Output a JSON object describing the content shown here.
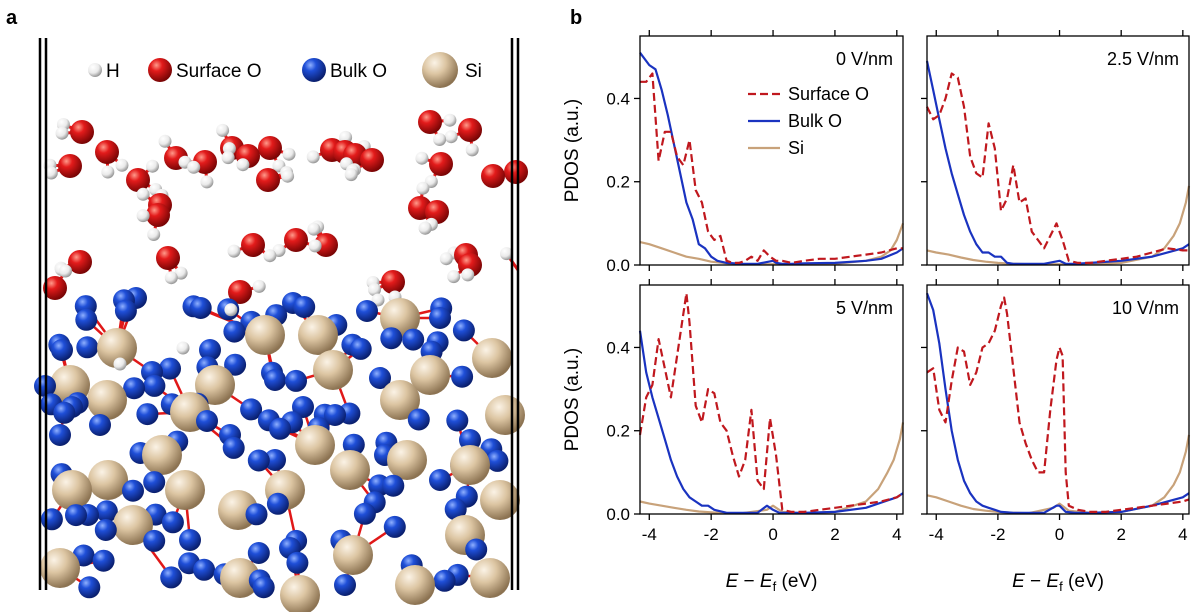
{
  "panel_a": {
    "letter": "a",
    "legend": [
      {
        "label": "H",
        "color": "#f2f2f2"
      },
      {
        "label": "Surface O",
        "color": "#d41818"
      },
      {
        "label": "Bulk O",
        "color": "#1f4fd8"
      },
      {
        "label": "Si",
        "color": "#d9c3a0"
      }
    ]
  },
  "panel_b": {
    "letter": "b"
  },
  "colors": {
    "surface_o": "#c0181e",
    "bulk_o": "#1a33c0",
    "si": "#c8a27a",
    "bond": "#e01818",
    "h_atom": "#f2f2f2",
    "o_atom": "#d41818",
    "bulk_atom": "#1f4fd8",
    "si_atom": "#d9c3a0"
  },
  "chart_data": [
    {
      "type": "line",
      "panel": "0 V/nm",
      "field_label": "0 V/nm",
      "xlabel": "E − E_f (eV)",
      "ylabel": "PDOS (a.u.)",
      "xlim": [
        -4.3,
        4.2
      ],
      "ylim": [
        0,
        0.55
      ],
      "xticks": [
        "-4",
        "-2",
        "0",
        "2",
        "4"
      ],
      "yticks": [
        "0.0",
        "0.2",
        "0.4"
      ],
      "legend": [
        "Surface O",
        "Bulk O",
        "Si"
      ],
      "legend_position": "top-right",
      "series": [
        {
          "name": "Surface O",
          "style": "dashed",
          "x": [
            -4.3,
            -4.1,
            -3.9,
            -3.7,
            -3.5,
            -3.3,
            -3.1,
            -2.9,
            -2.7,
            -2.5,
            -2.3,
            -2.1,
            -1.9,
            -1.7,
            -1.5,
            -1.3,
            -1.1,
            -0.9,
            -0.7,
            -0.5,
            -0.3,
            -0.1,
            0.1,
            0.3,
            0.6,
            1.0,
            1.5,
            2.0,
            2.5,
            3.0,
            3.5,
            4.0,
            4.2
          ],
          "y": [
            0.44,
            0.44,
            0.46,
            0.25,
            0.32,
            0.32,
            0.26,
            0.24,
            0.3,
            0.18,
            0.15,
            0.08,
            0.06,
            0.07,
            0.01,
            0.005,
            0.005,
            0.01,
            0.02,
            0.01,
            0.035,
            0.02,
            0.01,
            0.01,
            0.005,
            0.01,
            0.015,
            0.015,
            0.02,
            0.025,
            0.03,
            0.04,
            0.04
          ]
        },
        {
          "name": "Bulk O",
          "style": "solid",
          "x": [
            -4.3,
            -4.0,
            -3.8,
            -3.6,
            -3.4,
            -3.2,
            -3.0,
            -2.8,
            -2.6,
            -2.4,
            -2.2,
            -2.0,
            -1.8,
            -1.5,
            -1.0,
            -0.5,
            0.0,
            0.1,
            0.3,
            0.6,
            1.0,
            2.0,
            3.0,
            3.5,
            4.0,
            4.2
          ],
          "y": [
            0.51,
            0.48,
            0.47,
            0.42,
            0.36,
            0.29,
            0.22,
            0.15,
            0.11,
            0.05,
            0.04,
            0.02,
            0.01,
            0.005,
            0.003,
            0.003,
            0.01,
            0.005,
            0.003,
            0.003,
            0.004,
            0.005,
            0.01,
            0.015,
            0.03,
            0.04
          ]
        },
        {
          "name": "Si",
          "style": "solid",
          "x": [
            -4.3,
            -4.0,
            -3.6,
            -3.2,
            -2.8,
            -2.4,
            -2.0,
            -1.5,
            -1.0,
            0.0,
            1.0,
            2.0,
            3.0,
            3.5,
            3.8,
            4.0,
            4.1,
            4.2
          ],
          "y": [
            0.055,
            0.05,
            0.04,
            0.03,
            0.02,
            0.015,
            0.008,
            0.004,
            0.002,
            0.002,
            0.002,
            0.003,
            0.01,
            0.02,
            0.035,
            0.06,
            0.08,
            0.1
          ]
        }
      ]
    },
    {
      "type": "line",
      "panel": "2.5 V/nm",
      "field_label": "2.5 V/nm",
      "xlabel": "E − E_f (eV)",
      "ylabel": "",
      "xlim": [
        -4.3,
        4.2
      ],
      "ylim": [
        0,
        0.55
      ],
      "xticks": [
        "-4",
        "-2",
        "0",
        "2",
        "4"
      ],
      "yticks": [],
      "series": [
        {
          "name": "Surface O",
          "style": "dashed",
          "x": [
            -4.3,
            -4.1,
            -3.9,
            -3.7,
            -3.5,
            -3.3,
            -3.1,
            -2.9,
            -2.7,
            -2.5,
            -2.3,
            -2.1,
            -1.9,
            -1.7,
            -1.5,
            -1.3,
            -1.1,
            -0.9,
            -0.7,
            -0.5,
            -0.3,
            -0.1,
            0.1,
            0.3,
            0.6,
            1.0,
            1.5,
            2.0,
            2.5,
            3.0,
            3.5,
            4.0,
            4.2
          ],
          "y": [
            0.38,
            0.35,
            0.36,
            0.4,
            0.46,
            0.45,
            0.38,
            0.26,
            0.22,
            0.21,
            0.34,
            0.28,
            0.13,
            0.16,
            0.24,
            0.15,
            0.16,
            0.08,
            0.06,
            0.04,
            0.07,
            0.1,
            0.06,
            0.01,
            0.005,
            0.005,
            0.01,
            0.015,
            0.02,
            0.03,
            0.04,
            0.035,
            0.035
          ]
        },
        {
          "name": "Bulk O",
          "style": "solid",
          "x": [
            -4.3,
            -4.1,
            -3.9,
            -3.7,
            -3.5,
            -3.3,
            -3.1,
            -2.9,
            -2.7,
            -2.5,
            -2.3,
            -2.1,
            -1.9,
            -1.7,
            -1.5,
            -1.0,
            -0.5,
            0.0,
            0.2,
            0.5,
            1.0,
            2.0,
            3.0,
            4.0,
            4.2
          ],
          "y": [
            0.49,
            0.42,
            0.35,
            0.28,
            0.22,
            0.17,
            0.12,
            0.08,
            0.05,
            0.03,
            0.03,
            0.02,
            0.02,
            0.005,
            0.003,
            0.003,
            0.003,
            0.01,
            0.003,
            0.003,
            0.005,
            0.01,
            0.02,
            0.04,
            0.05
          ]
        },
        {
          "name": "Si",
          "style": "solid",
          "x": [
            -4.3,
            -4.0,
            -3.6,
            -3.2,
            -2.8,
            -2.4,
            -2.0,
            -1.5,
            -1.0,
            0.0,
            1.0,
            2.0,
            3.0,
            3.4,
            3.7,
            3.9,
            4.1,
            4.2
          ],
          "y": [
            0.035,
            0.03,
            0.025,
            0.018,
            0.012,
            0.008,
            0.005,
            0.003,
            0.002,
            0.002,
            0.002,
            0.005,
            0.02,
            0.04,
            0.07,
            0.1,
            0.15,
            0.19
          ]
        }
      ]
    },
    {
      "type": "line",
      "panel": "5 V/nm",
      "field_label": "5 V/nm",
      "xlabel": "E − E_f (eV)",
      "ylabel": "PDOS (a.u.)",
      "xlim": [
        -4.3,
        4.2
      ],
      "ylim": [
        0,
        0.55
      ],
      "xticks": [
        "-4",
        "-2",
        "0",
        "2",
        "4"
      ],
      "yticks": [
        "0.0",
        "0.2",
        "0.4"
      ],
      "series": [
        {
          "name": "Surface O",
          "style": "dashed",
          "x": [
            -4.3,
            -4.1,
            -3.9,
            -3.7,
            -3.5,
            -3.3,
            -3.1,
            -2.9,
            -2.8,
            -2.7,
            -2.5,
            -2.3,
            -2.1,
            -1.9,
            -1.7,
            -1.5,
            -1.3,
            -1.1,
            -0.9,
            -0.7,
            -0.5,
            -0.3,
            -0.1,
            0.1,
            0.3,
            0.6,
            1.0,
            1.5,
            2.0,
            2.5,
            3.0,
            3.5,
            4.0,
            4.2
          ],
          "y": [
            0.19,
            0.28,
            0.31,
            0.42,
            0.35,
            0.28,
            0.38,
            0.48,
            0.53,
            0.46,
            0.26,
            0.22,
            0.3,
            0.29,
            0.22,
            0.2,
            0.14,
            0.09,
            0.13,
            0.25,
            0.08,
            0.06,
            0.23,
            0.14,
            0.01,
            0.005,
            0.005,
            0.01,
            0.015,
            0.02,
            0.025,
            0.03,
            0.04,
            0.05
          ]
        },
        {
          "name": "Bulk O",
          "style": "solid",
          "x": [
            -4.3,
            -4.1,
            -3.9,
            -3.7,
            -3.5,
            -3.3,
            -3.1,
            -2.9,
            -2.7,
            -2.5,
            -2.3,
            -2.1,
            -1.9,
            -1.5,
            -1.0,
            -0.5,
            -0.2,
            0.0,
            0.2,
            0.5,
            1.0,
            2.0,
            3.0,
            4.0,
            4.2
          ],
          "y": [
            0.44,
            0.34,
            0.28,
            0.23,
            0.18,
            0.13,
            0.09,
            0.06,
            0.04,
            0.03,
            0.02,
            0.02,
            0.01,
            0.003,
            0.003,
            0.003,
            0.02,
            0.01,
            0.003,
            0.003,
            0.003,
            0.005,
            0.015,
            0.04,
            0.05
          ]
        },
        {
          "name": "Si",
          "style": "solid",
          "x": [
            -4.3,
            -4.0,
            -3.6,
            -3.2,
            -2.8,
            -2.4,
            -2.0,
            -1.5,
            -1.0,
            -0.2,
            0.0,
            0.3,
            1.0,
            2.0,
            3.0,
            3.4,
            3.7,
            3.9,
            4.1,
            4.2
          ],
          "y": [
            0.03,
            0.025,
            0.02,
            0.015,
            0.01,
            0.006,
            0.004,
            0.002,
            0.002,
            0.01,
            0.02,
            0.005,
            0.002,
            0.005,
            0.03,
            0.06,
            0.1,
            0.13,
            0.18,
            0.22
          ]
        }
      ]
    },
    {
      "type": "line",
      "panel": "10 V/nm",
      "field_label": "10 V/nm",
      "xlabel": "E − E_f (eV)",
      "ylabel": "",
      "xlim": [
        -4.3,
        4.2
      ],
      "ylim": [
        0,
        0.55
      ],
      "xticks": [
        "-4",
        "-2",
        "0",
        "2",
        "4"
      ],
      "yticks": [],
      "series": [
        {
          "name": "Surface O",
          "style": "dashed",
          "x": [
            -4.3,
            -4.1,
            -3.9,
            -3.7,
            -3.5,
            -3.3,
            -3.1,
            -2.9,
            -2.7,
            -2.5,
            -2.3,
            -2.1,
            -1.9,
            -1.8,
            -1.7,
            -1.5,
            -1.3,
            -1.1,
            -0.9,
            -0.7,
            -0.5,
            -0.3,
            -0.1,
            0.0,
            0.1,
            0.2,
            0.3,
            0.6,
            1.0,
            1.5,
            2.0,
            2.5,
            3.0,
            3.5,
            4.0,
            4.2
          ],
          "y": [
            0.34,
            0.35,
            0.25,
            0.22,
            0.32,
            0.4,
            0.39,
            0.31,
            0.34,
            0.4,
            0.41,
            0.44,
            0.5,
            0.52,
            0.48,
            0.35,
            0.22,
            0.17,
            0.13,
            0.1,
            0.1,
            0.25,
            0.37,
            0.4,
            0.38,
            0.1,
            0.02,
            0.01,
            0.005,
            0.005,
            0.01,
            0.015,
            0.02,
            0.025,
            0.03,
            0.035
          ]
        },
        {
          "name": "Bulk O",
          "style": "solid",
          "x": [
            -4.3,
            -4.1,
            -3.9,
            -3.7,
            -3.5,
            -3.3,
            -3.1,
            -2.9,
            -2.7,
            -2.5,
            -2.3,
            -2.1,
            -1.9,
            -1.5,
            -1.0,
            -0.5,
            -0.1,
            0.0,
            0.2,
            0.5,
            1.0,
            2.0,
            3.0,
            4.0,
            4.2
          ],
          "y": [
            0.53,
            0.49,
            0.41,
            0.3,
            0.2,
            0.13,
            0.08,
            0.05,
            0.03,
            0.02,
            0.015,
            0.01,
            0.005,
            0.003,
            0.003,
            0.003,
            0.02,
            0.02,
            0.005,
            0.003,
            0.003,
            0.005,
            0.02,
            0.04,
            0.05
          ]
        },
        {
          "name": "Si",
          "style": "solid",
          "x": [
            -4.3,
            -4.0,
            -3.6,
            -3.2,
            -2.8,
            -2.4,
            -2.0,
            -1.5,
            -1.0,
            -0.2,
            0.0,
            0.3,
            1.0,
            2.0,
            3.0,
            3.4,
            3.7,
            3.9,
            4.1,
            4.2
          ],
          "y": [
            0.045,
            0.04,
            0.03,
            0.02,
            0.012,
            0.008,
            0.005,
            0.003,
            0.002,
            0.015,
            0.025,
            0.008,
            0.003,
            0.005,
            0.02,
            0.04,
            0.07,
            0.1,
            0.15,
            0.19
          ]
        }
      ]
    }
  ]
}
